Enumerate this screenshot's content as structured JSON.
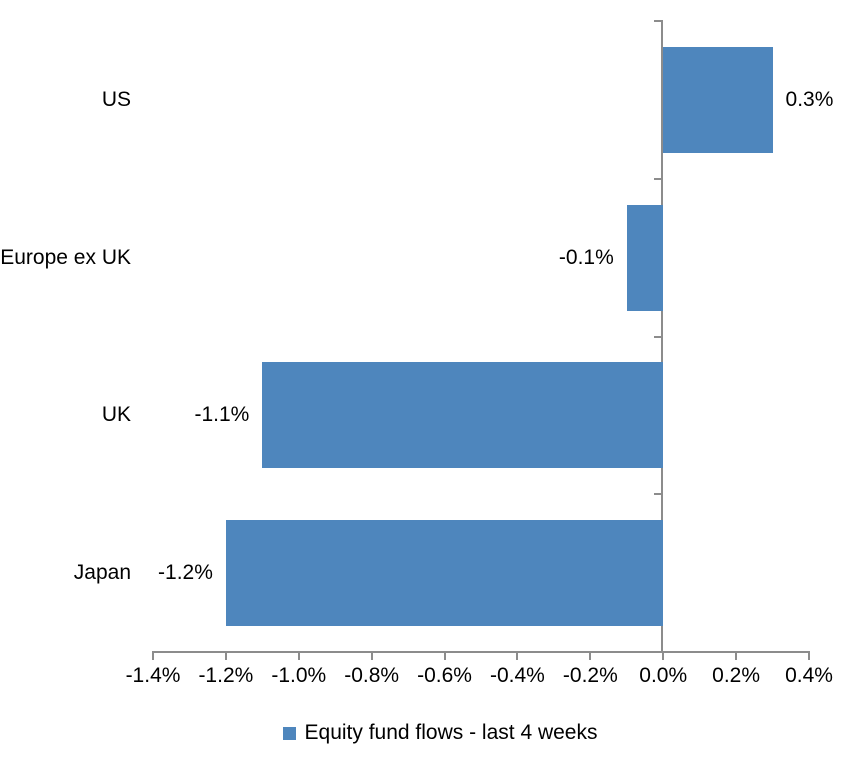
{
  "chart_data": {
    "type": "bar",
    "orientation": "horizontal",
    "title": "",
    "categories": [
      "US",
      "Europe ex UK",
      "UK",
      "Japan"
    ],
    "values": [
      0.3,
      -0.1,
      -1.1,
      -1.2
    ],
    "data_labels": [
      "0.3%",
      "-0.1%",
      "-1.1%",
      "-1.2%"
    ],
    "series_name": "Equity fund flows - last 4 weeks",
    "xlabel": "",
    "ylabel": "",
    "x_axis": {
      "min": -1.4,
      "max": 0.4,
      "tick_step": 0.2,
      "tick_labels": [
        "-1.4%",
        "-1.2%",
        "-1.0%",
        "-0.8%",
        "-0.6%",
        "-0.4%",
        "-0.2%",
        "0.0%",
        "0.2%",
        "0.4%"
      ]
    },
    "grid": false,
    "legend_position": "bottom",
    "colors": {
      "bar": "#4E86BD",
      "axis": "#8C8C8C",
      "text": "#000000"
    }
  }
}
